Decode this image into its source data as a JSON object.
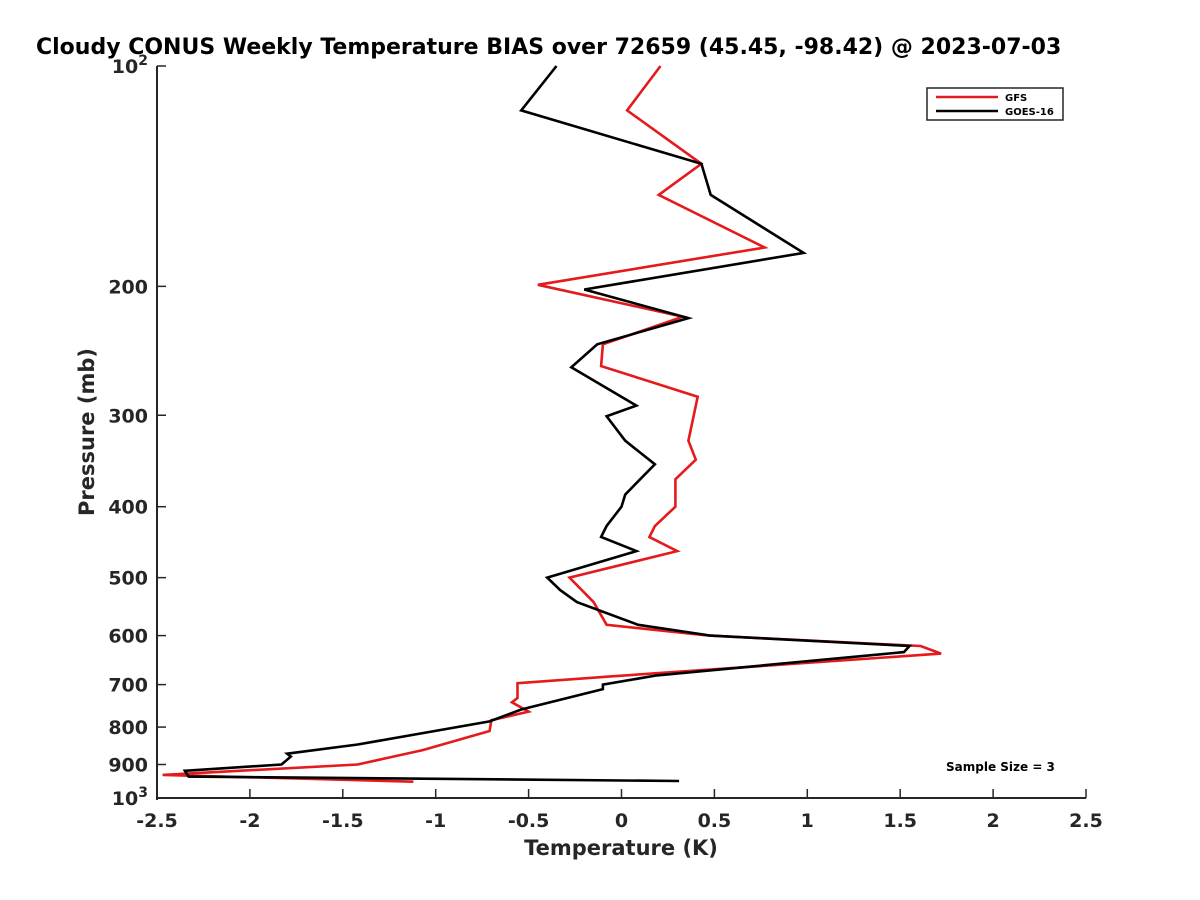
{
  "chart_data": {
    "type": "line",
    "title": "Cloudy CONUS Weekly Temperature BIAS over 72659 (45.45, -98.42) @ 2023-07-03",
    "xlabel": "Temperature (K)",
    "ylabel": "Pressure (mb)",
    "xlim": [
      -2.5,
      2.5
    ],
    "ylim": [
      100,
      1000
    ],
    "y_scale": "log",
    "y_reversed": true,
    "x_ticks": [
      -2.5,
      -2,
      -1.5,
      -1,
      -0.5,
      0,
      0.5,
      1,
      1.5,
      2,
      2.5
    ],
    "x_tick_labels": [
      "-2.5",
      "-2",
      "-1.5",
      "-1",
      "-0.5",
      "0",
      "0.5",
      "1",
      "1.5",
      "2",
      "2.5"
    ],
    "y_ticks": [
      {
        "value": 100,
        "base": "10",
        "exp": "2"
      },
      {
        "value": 200,
        "label": "200"
      },
      {
        "value": 300,
        "label": "300"
      },
      {
        "value": 400,
        "label": "400"
      },
      {
        "value": 500,
        "label": "500"
      },
      {
        "value": 600,
        "label": "600"
      },
      {
        "value": 700,
        "label": "700"
      },
      {
        "value": 800,
        "label": "800"
      },
      {
        "value": 900,
        "label": "900"
      },
      {
        "value": 1000,
        "base": "10",
        "exp": "3"
      }
    ],
    "grid": false,
    "legend_position": "top-right",
    "annotation": "Sample Size = 3",
    "series": [
      {
        "name": "GFS",
        "color": "#e41a1c",
        "points": [
          [
            0.21,
            100
          ],
          [
            0.03,
            115
          ],
          [
            0.43,
            136
          ],
          [
            0.2,
            150
          ],
          [
            0.77,
            177
          ],
          [
            -0.45,
            199
          ],
          [
            0.33,
            220
          ],
          [
            -0.1,
            240
          ],
          [
            -0.11,
            257
          ],
          [
            0.41,
            283
          ],
          [
            0.36,
            325
          ],
          [
            0.4,
            345
          ],
          [
            0.29,
            367
          ],
          [
            0.29,
            380
          ],
          [
            0.29,
            400
          ],
          [
            0.18,
            425
          ],
          [
            0.15,
            440
          ],
          [
            0.3,
            460
          ],
          [
            -0.28,
            500
          ],
          [
            -0.15,
            540
          ],
          [
            -0.08,
            580
          ],
          [
            0.47,
            600
          ],
          [
            1.61,
            620
          ],
          [
            1.72,
            635
          ],
          [
            -0.05,
            682
          ],
          [
            -0.56,
            697
          ],
          [
            -0.56,
            730
          ],
          [
            -0.59,
            740
          ],
          [
            -0.5,
            762
          ],
          [
            -0.7,
            783
          ],
          [
            -0.71,
            810
          ],
          [
            -1.07,
            860
          ],
          [
            -1.42,
            900
          ],
          [
            -2.47,
            930
          ],
          [
            -1.12,
            950
          ]
        ]
      },
      {
        "name": "GOES-16",
        "color": "#000000",
        "points": [
          [
            -0.35,
            100
          ],
          [
            -0.54,
            115
          ],
          [
            0.43,
            136
          ],
          [
            0.48,
            150
          ],
          [
            0.98,
            180
          ],
          [
            -0.2,
            202
          ],
          [
            0.36,
            221
          ],
          [
            -0.13,
            240
          ],
          [
            -0.27,
            258
          ],
          [
            0.08,
            291
          ],
          [
            -0.08,
            301
          ],
          [
            0.02,
            325
          ],
          [
            0.18,
            350
          ],
          [
            0.1,
            367
          ],
          [
            0.02,
            385
          ],
          [
            0.0,
            400
          ],
          [
            -0.08,
            425
          ],
          [
            -0.11,
            440
          ],
          [
            0.08,
            460
          ],
          [
            -0.4,
            500
          ],
          [
            -0.33,
            520
          ],
          [
            -0.24,
            540
          ],
          [
            0.09,
            580
          ],
          [
            0.48,
            600
          ],
          [
            1.55,
            620
          ],
          [
            1.52,
            632
          ],
          [
            0.19,
            680
          ],
          [
            -0.1,
            700
          ],
          [
            -0.1,
            710
          ],
          [
            -0.54,
            757
          ],
          [
            -0.71,
            786
          ],
          [
            -1.42,
            845
          ],
          [
            -1.8,
            870
          ],
          [
            -1.78,
            878
          ],
          [
            -1.83,
            900
          ],
          [
            -2.35,
            918
          ],
          [
            -2.33,
            935
          ],
          [
            0.31,
            948
          ]
        ]
      }
    ]
  }
}
